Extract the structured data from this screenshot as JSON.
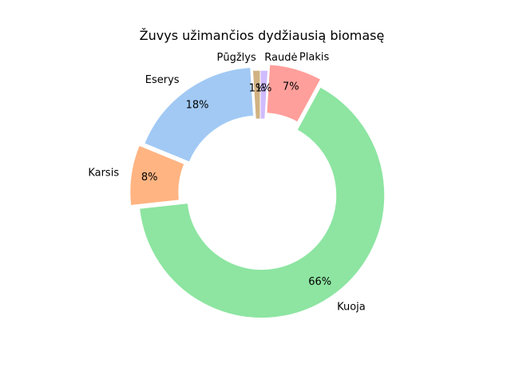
{
  "chart_data": {
    "type": "pie",
    "style": "donut",
    "title": "Žuvys užimančios dydžiausią biomasę",
    "categories": [
      "Pūgžlys",
      "Eserys",
      "Karsis",
      "Kuoja",
      "Plakis",
      "Raudė"
    ],
    "values": [
      1,
      18,
      8,
      66,
      7,
      1
    ],
    "value_labels": [
      "1%",
      "18%",
      "8%",
      "66%",
      "7%",
      "1%"
    ],
    "colors": [
      "#d1b283",
      "#a1c9f4",
      "#ffb482",
      "#8de5a1",
      "#ff9f9b",
      "#d0bbff"
    ],
    "start_angle_deg": 90,
    "direction": "counterclockwise",
    "legend": "none"
  }
}
